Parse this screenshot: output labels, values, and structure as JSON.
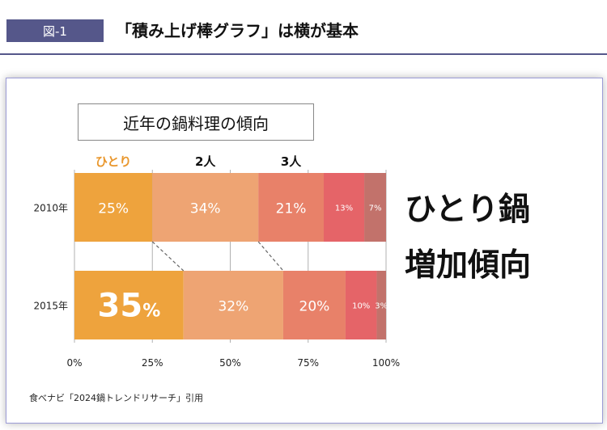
{
  "header": {
    "figure_label": "図-1",
    "title": "「積み上げ棒グラフ」は横が基本"
  },
  "chart_title": "近年の鍋料理の傾向",
  "callout": {
    "line1": "ひとり鍋",
    "line2": "増加傾向"
  },
  "source": "食べナビ「2024鍋トレンドリサーチ」引用",
  "colors": {
    "accent_navy": "#55578a",
    "segments": [
      "#eea33d",
      "#eea473",
      "#e88169",
      "#e56468",
      "#c2726b"
    ],
    "hitori_label": "#e9972d"
  },
  "chart_data": {
    "type": "bar",
    "orientation": "horizontal",
    "stacked": true,
    "categories": [
      "2010年",
      "2015年"
    ],
    "series": [
      {
        "name": "ひとり",
        "values": [
          25,
          35
        ]
      },
      {
        "name": "2人",
        "values": [
          34,
          32
        ]
      },
      {
        "name": "3人",
        "values": [
          21,
          20
        ]
      },
      {
        "name": "",
        "values": [
          13,
          10
        ]
      },
      {
        "name": "",
        "values": [
          7,
          3
        ]
      }
    ],
    "data_labels": [
      [
        "25%",
        "34%",
        "21%",
        "13%",
        "7%"
      ],
      [
        "35%",
        "32%",
        "20%",
        "10%",
        "3%"
      ]
    ],
    "xticks": [
      "0%",
      "25%",
      "50%",
      "75%",
      "100%"
    ],
    "xlim": [
      0,
      100
    ],
    "grid": true,
    "connector_lines": true
  }
}
